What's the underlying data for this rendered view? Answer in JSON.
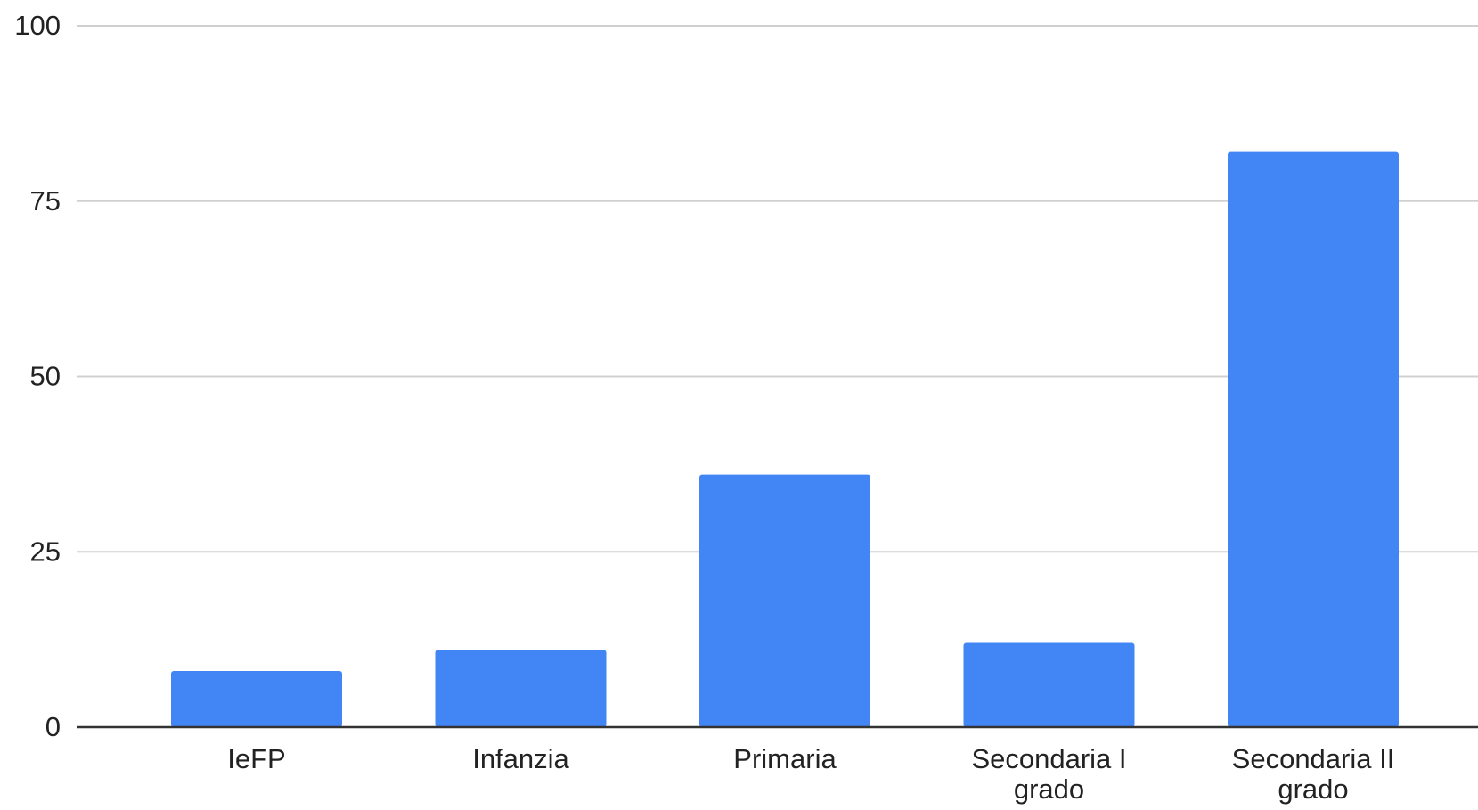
{
  "chart_data": {
    "type": "bar",
    "categories": [
      "IeFP",
      "Infanzia",
      "Primaria",
      "Secondaria I grado",
      "Secondaria II grado"
    ],
    "category_label_lines": [
      [
        "IeFP"
      ],
      [
        "Infanzia"
      ],
      [
        "Primaria"
      ],
      [
        "Secondaria I",
        "grado"
      ],
      [
        "Secondaria II",
        "grado"
      ]
    ],
    "values": [
      8,
      11,
      36,
      12,
      82
    ],
    "title": "",
    "xlabel": "",
    "ylabel": "",
    "ylim": [
      0,
      100
    ],
    "yticks": [
      0,
      25,
      50,
      75,
      100
    ],
    "grid": true,
    "legend": "none",
    "colors": {
      "bar": "#4285F4",
      "grid": "#d0d0d0",
      "axis": "#333333",
      "text": "#222222"
    }
  }
}
